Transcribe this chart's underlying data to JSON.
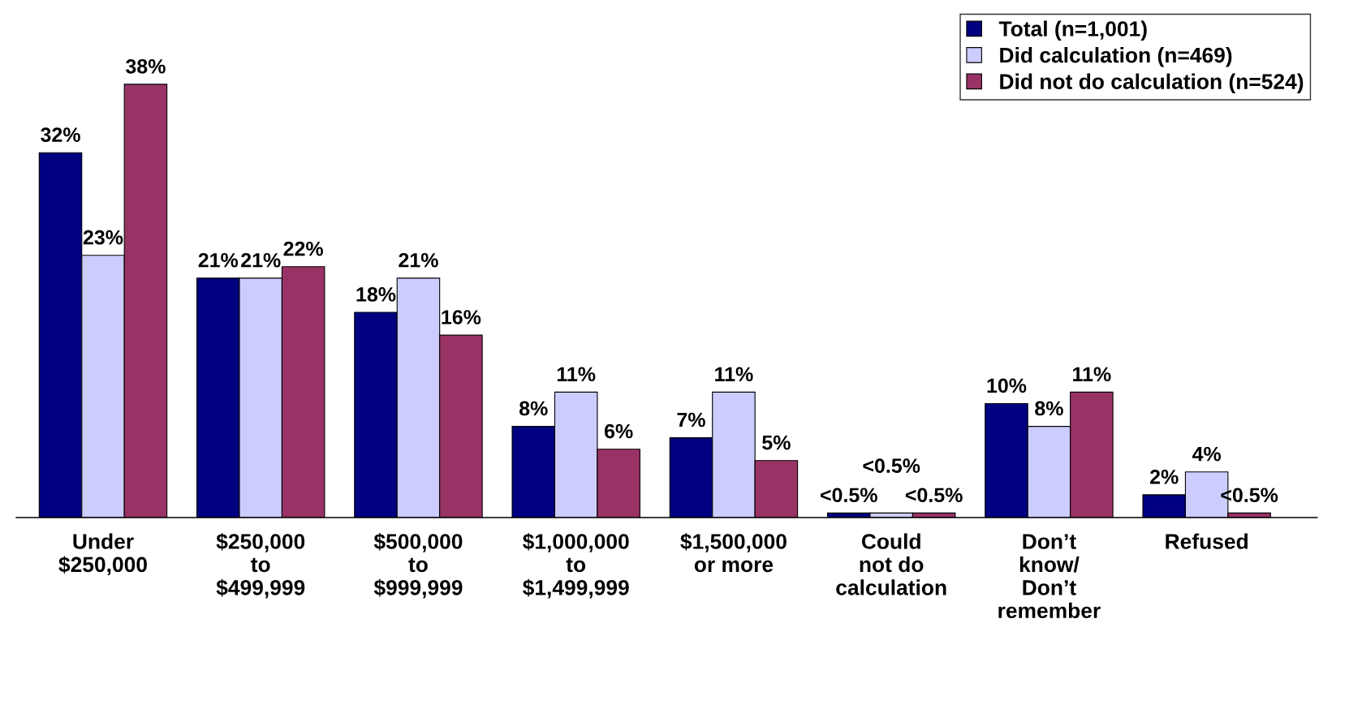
{
  "chart_data": {
    "type": "bar",
    "categories": [
      "Under\n$250,000",
      "$250,000\nto\n$499,999",
      "$500,000\nto\n$999,999",
      "$1,000,000\nto\n$1,499,999",
      "$1,500,000\nor more",
      "Could\nnot do\ncalculation",
      "Don’t\nknow/\nDon’t\nremember",
      "Refused"
    ],
    "series": [
      {
        "name": "Total (n=1,001)",
        "color": "#000080",
        "values": [
          32,
          21,
          18,
          8,
          7,
          0.4,
          10,
          2
        ],
        "value_labels": [
          "32%",
          "21%",
          "18%",
          "8%",
          "7%",
          "<0.5%",
          "10%",
          "2%"
        ]
      },
      {
        "name": "Did calculation (n=469)",
        "color": "#ccccff",
        "values": [
          23,
          21,
          21,
          11,
          11,
          0.4,
          8,
          4
        ],
        "value_labels": [
          "23%",
          "21%",
          "21%",
          "11%",
          "11%",
          "<0.5%",
          "8%",
          "4%"
        ]
      },
      {
        "name": "Did not do calculation (n=524)",
        "color": "#993366",
        "values": [
          38,
          22,
          16,
          6,
          5,
          0.4,
          11,
          0.4
        ],
        "value_labels": [
          "38%",
          "22%",
          "16%",
          "6%",
          "5%",
          "<0.5%",
          "11%",
          "<0.5%"
        ]
      }
    ],
    "legend": "top right",
    "grid": false
  }
}
